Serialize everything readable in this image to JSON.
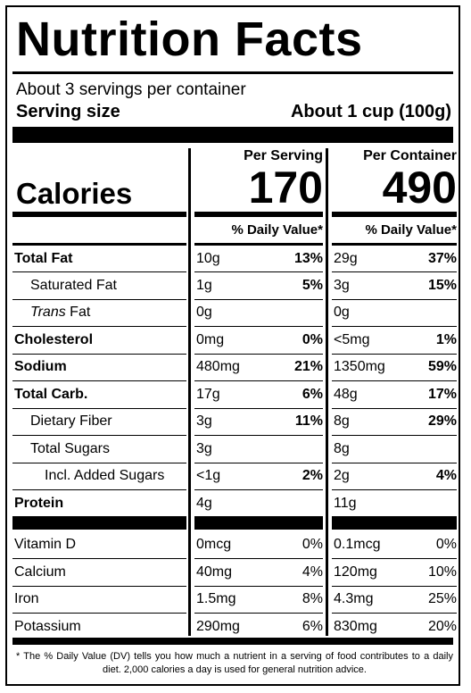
{
  "title": "Nutrition Facts",
  "servings_per_container": "About 3 servings per container",
  "serving_size_label": "Serving size",
  "serving_size_value": "About 1 cup (100g)",
  "per_serving_header": "Per Serving",
  "per_container_header": "Per Container",
  "calories_label": "Calories",
  "calories_serving": "170",
  "calories_container": "490",
  "dv_header": "% Daily Value*",
  "nutrients": [
    {
      "label": "Total Fat",
      "serv_amt": "10g",
      "serv_dv": "13%",
      "cont_amt": "29g",
      "cont_dv": "37%"
    },
    {
      "label": "Saturated Fat",
      "serv_amt": "1g",
      "serv_dv": "5%",
      "cont_amt": "3g",
      "cont_dv": "15%"
    },
    {
      "label_italic": "Trans",
      "label": " Fat",
      "serv_amt": "0g",
      "serv_dv": "",
      "cont_amt": "0g",
      "cont_dv": ""
    },
    {
      "label": "Cholesterol",
      "serv_amt": "0mg",
      "serv_dv": "0%",
      "cont_amt": "<5mg",
      "cont_dv": "1%"
    },
    {
      "label": "Sodium",
      "serv_amt": "480mg",
      "serv_dv": "21%",
      "cont_amt": "1350mg",
      "cont_dv": "59%"
    },
    {
      "label": "Total Carb.",
      "serv_amt": "17g",
      "serv_dv": "6%",
      "cont_amt": "48g",
      "cont_dv": "17%"
    },
    {
      "label": "Dietary Fiber",
      "serv_amt": "3g",
      "serv_dv": "11%",
      "cont_amt": "8g",
      "cont_dv": "29%"
    },
    {
      "label": "Total Sugars",
      "serv_amt": "3g",
      "serv_dv": "",
      "cont_amt": "8g",
      "cont_dv": ""
    },
    {
      "label": "Incl. Added Sugars",
      "serv_amt": "<1g",
      "serv_dv": "2%",
      "cont_amt": "2g",
      "cont_dv": "4%"
    },
    {
      "label": "Protein",
      "serv_amt": "4g",
      "serv_dv": "",
      "cont_amt": "11g",
      "cont_dv": ""
    }
  ],
  "vitamins": [
    {
      "label": "Vitamin D",
      "serv_amt": "0mcg",
      "serv_dv": "0%",
      "cont_amt": "0.1mcg",
      "cont_dv": "0%"
    },
    {
      "label": "Calcium",
      "serv_amt": "40mg",
      "serv_dv": "4%",
      "cont_amt": "120mg",
      "cont_dv": "10%"
    },
    {
      "label": "Iron",
      "serv_amt": "1.5mg",
      "serv_dv": "8%",
      "cont_amt": "4.3mg",
      "cont_dv": "25%"
    },
    {
      "label": "Potassium",
      "serv_amt": "290mg",
      "serv_dv": "6%",
      "cont_amt": "830mg",
      "cont_dv": "20%"
    }
  ],
  "footnote": "* The % Daily Value (DV) tells you how much a nutrient in a serving of food contributes to a daily diet. 2,000 calories a day is used for general nutrition advice."
}
